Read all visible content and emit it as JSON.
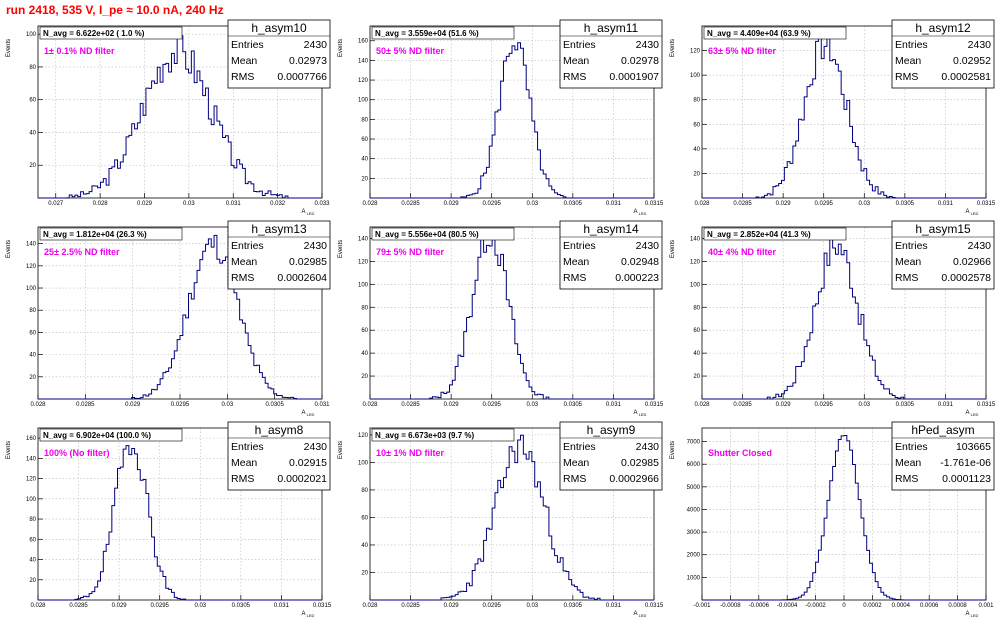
{
  "header": {
    "title": "run 2418,   535 V, I_pe ≈ 10.0 nA, 240 Hz"
  },
  "stats_labels": {
    "entries": "Entries",
    "mean": "Mean",
    "rms": "RMS"
  },
  "y_axis_title": "Events",
  "colors": {
    "line": "#000080",
    "filter_text": "#ee00ee",
    "title": "#ff0000",
    "grid": "#bbbbbb"
  },
  "chart_data": [
    {
      "type": "bar",
      "hist_name": "h_asym10",
      "navg": "N_avg = 6.622e+02 ( 1.0 %)",
      "filter_label": "1± 0.1% ND filter",
      "entries": "2430",
      "mean_value": "0.02973",
      "rms_value": "0.0007766",
      "xlabel": "A_LED",
      "ylabel": "Events",
      "xlim": [
        0.0266,
        0.033
      ],
      "ylim": [
        0,
        105
      ],
      "xticks": [
        "0.027",
        "0.028",
        "0.029",
        "0.03",
        "0.031",
        "0.032",
        "0.033"
      ],
      "xtick_values": [
        0.027,
        0.028,
        0.029,
        0.03,
        0.031,
        0.032,
        0.033
      ],
      "yticks": [
        "20",
        "40",
        "60",
        "80",
        "100"
      ],
      "ytick_values": [
        20,
        40,
        60,
        80,
        100
      ],
      "mean": 0.02973,
      "sigma": 0.00078,
      "peak": 90,
      "noise": 12,
      "seed": 3
    },
    {
      "type": "bar",
      "hist_name": "h_asym11",
      "navg": "N_avg = 3.559e+04 (51.6 %)",
      "filter_label": "50± 5% ND filter",
      "entries": "2430",
      "mean_value": "0.02978",
      "rms_value": "0.0001907",
      "xlabel": "A_LED",
      "ylabel": "Events",
      "xlim": [
        0.028,
        0.0315
      ],
      "ylim": [
        0,
        175
      ],
      "xticks": [
        "0.028",
        "0.0285",
        "0.029",
        "0.0295",
        "0.03",
        "0.0305",
        "0.031",
        "0.0315"
      ],
      "xtick_values": [
        0.028,
        0.0285,
        0.029,
        0.0295,
        0.03,
        0.0305,
        0.031,
        0.0315
      ],
      "yticks": [
        "20",
        "40",
        "60",
        "80",
        "100",
        "120",
        "140",
        "160"
      ],
      "ytick_values": [
        20,
        40,
        60,
        80,
        100,
        120,
        140,
        160
      ],
      "mean": 0.02978,
      "sigma": 0.00019,
      "peak": 160,
      "noise": 14,
      "seed": 5
    },
    {
      "type": "bar",
      "hist_name": "h_asym12",
      "navg": "N_avg = 4.409e+04 (63.9 %)",
      "filter_label": "63± 5% ND filter",
      "entries": "2430",
      "mean_value": "0.02952",
      "rms_value": "0.0002581",
      "xlabel": "A_LED",
      "ylabel": "Events",
      "xlim": [
        0.028,
        0.0315
      ],
      "ylim": [
        0,
        140
      ],
      "xticks": [
        "0.028",
        "0.0285",
        "0.029",
        "0.0295",
        "0.03",
        "0.0305",
        "0.031",
        "0.0315"
      ],
      "xtick_values": [
        0.028,
        0.0285,
        0.029,
        0.0295,
        0.03,
        0.0305,
        0.031,
        0.0315
      ],
      "yticks": [
        "20",
        "40",
        "60",
        "80",
        "100",
        "120"
      ],
      "ytick_values": [
        20,
        40,
        60,
        80,
        100,
        120
      ],
      "mean": 0.02952,
      "sigma": 0.00026,
      "peak": 125,
      "noise": 14,
      "seed": 7
    },
    {
      "type": "bar",
      "hist_name": "h_asym13",
      "navg": "N_avg = 1.812e+04 (26.3 %)",
      "filter_label": "25± 2.5% ND filter",
      "entries": "2430",
      "mean_value": "0.02985",
      "rms_value": "0.0002604",
      "xlabel": "A_LED",
      "ylabel": "Events",
      "xlim": [
        0.028,
        0.031
      ],
      "ylim": [
        0,
        155
      ],
      "xticks": [
        "0.028",
        "0.0285",
        "0.029",
        "0.0295",
        "0.03",
        "0.0305",
        "0.031"
      ],
      "xtick_values": [
        0.028,
        0.0285,
        0.029,
        0.0295,
        0.03,
        0.0305,
        0.031
      ],
      "yticks": [
        "20",
        "40",
        "60",
        "80",
        "100",
        "120",
        "140"
      ],
      "ytick_values": [
        20,
        40,
        60,
        80,
        100,
        120,
        140
      ],
      "mean": 0.02985,
      "sigma": 0.00026,
      "peak": 140,
      "noise": 12,
      "seed": 11
    },
    {
      "type": "bar",
      "hist_name": "h_asym14",
      "navg": "N_avg = 5.556e+04 (80.5 %)",
      "filter_label": "79± 5% ND filter",
      "entries": "2430",
      "mean_value": "0.02948",
      "rms_value": "0.000223",
      "xlabel": "A_LED",
      "ylabel": "Events",
      "xlim": [
        0.028,
        0.0315
      ],
      "ylim": [
        0,
        150
      ],
      "xticks": [
        "0.028",
        "0.0285",
        "0.029",
        "0.0295",
        "0.03",
        "0.0305",
        "0.031",
        "0.0315"
      ],
      "xtick_values": [
        0.028,
        0.0285,
        0.029,
        0.0295,
        0.03,
        0.0305,
        0.031,
        0.0315
      ],
      "yticks": [
        "20",
        "40",
        "60",
        "80",
        "100",
        "120",
        "140"
      ],
      "ytick_values": [
        20,
        40,
        60,
        80,
        100,
        120,
        140
      ],
      "mean": 0.02948,
      "sigma": 0.00022,
      "peak": 145,
      "noise": 14,
      "seed": 13
    },
    {
      "type": "bar",
      "hist_name": "h_asym15",
      "navg": "N_avg = 2.852e+04 (41.3 %)",
      "filter_label": "40± 4% ND filter",
      "entries": "2430",
      "mean_value": "0.02966",
      "rms_value": "0.0002578",
      "xlabel": "A_LED",
      "ylabel": "Events",
      "xlim": [
        0.028,
        0.0315
      ],
      "ylim": [
        0,
        150
      ],
      "xticks": [
        "0.028",
        "0.0285",
        "0.029",
        "0.0295",
        "0.03",
        "0.0305",
        "0.031",
        "0.0315"
      ],
      "xtick_values": [
        0.028,
        0.0285,
        0.029,
        0.0295,
        0.03,
        0.0305,
        0.031,
        0.0315
      ],
      "yticks": [
        "20",
        "40",
        "60",
        "80",
        "100",
        "120",
        "140"
      ],
      "ytick_values": [
        20,
        40,
        60,
        80,
        100,
        120,
        140
      ],
      "mean": 0.02966,
      "sigma": 0.00026,
      "peak": 135,
      "noise": 14,
      "seed": 17
    },
    {
      "type": "bar",
      "hist_name": "h_asym8",
      "navg": "N_avg = 6.902e+04 (100.0 %)",
      "filter_label": "100% (No filter)",
      "entries": "2430",
      "mean_value": "0.02915",
      "rms_value": "0.0002021",
      "xlabel": "A_LED",
      "ylabel": "Events",
      "xlim": [
        0.028,
        0.0315
      ],
      "ylim": [
        0,
        170
      ],
      "xticks": [
        "0.028",
        "0.0285",
        "0.029",
        "0.0295",
        "0.03",
        "0.0305",
        "0.031",
        "0.0315"
      ],
      "xtick_values": [
        0.028,
        0.0285,
        0.029,
        0.0295,
        0.03,
        0.0305,
        0.031,
        0.0315
      ],
      "yticks": [
        "20",
        "40",
        "60",
        "80",
        "100",
        "120",
        "140",
        "160"
      ],
      "ytick_values": [
        20,
        40,
        60,
        80,
        100,
        120,
        140,
        160
      ],
      "mean": 0.02915,
      "sigma": 0.0002,
      "peak": 158,
      "noise": 14,
      "seed": 19
    },
    {
      "type": "bar",
      "hist_name": "h_asym9",
      "navg": "N_avg = 6.673e+03 (9.7 %)",
      "filter_label": "10± 1% ND filter",
      "entries": "2430",
      "mean_value": "0.02985",
      "rms_value": "0.0002966",
      "xlabel": "A_LED",
      "ylabel": "Events",
      "xlim": [
        0.028,
        0.0315
      ],
      "ylim": [
        0,
        125
      ],
      "xticks": [
        "0.028",
        "0.0285",
        "0.029",
        "0.0295",
        "0.03",
        "0.0305",
        "0.031",
        "0.0315"
      ],
      "xtick_values": [
        0.028,
        0.0285,
        0.029,
        0.0295,
        0.03,
        0.0305,
        0.031,
        0.0315
      ],
      "yticks": [
        "20",
        "40",
        "60",
        "80",
        "100",
        "120"
      ],
      "ytick_values": [
        20,
        40,
        60,
        80,
        100,
        120
      ],
      "mean": 0.02985,
      "sigma": 0.0003,
      "peak": 112,
      "noise": 12,
      "seed": 23
    },
    {
      "type": "bar",
      "hist_name": "hPed_asym",
      "navg": "",
      "filter_label": "Shutter Closed",
      "entries": "103665",
      "mean_value": "-1.761e-06",
      "rms_value": "0.0001123",
      "xlabel": "A_LED",
      "ylabel": "Events",
      "xlim": [
        -0.001,
        0.001
      ],
      "ylim": [
        0,
        7600
      ],
      "xticks": [
        "-0.001",
        "-0.0008",
        "-0.0006",
        "-0.0004",
        "-0.0002",
        "0",
        "0.0002",
        "0.0004",
        "0.0006",
        "0.0008",
        "0.001"
      ],
      "xtick_values": [
        -0.001,
        -0.0008,
        -0.0006,
        -0.0004,
        -0.0002,
        0,
        0.0002,
        0.0004,
        0.0006,
        0.0008,
        0.001
      ],
      "yticks": [
        "1000",
        "2000",
        "3000",
        "4000",
        "5000",
        "6000",
        "7000"
      ],
      "ytick_values": [
        1000,
        2000,
        3000,
        4000,
        5000,
        6000,
        7000
      ],
      "mean": 0.0,
      "sigma": 0.00011,
      "peak": 7300,
      "noise": 80,
      "seed": 29
    }
  ]
}
